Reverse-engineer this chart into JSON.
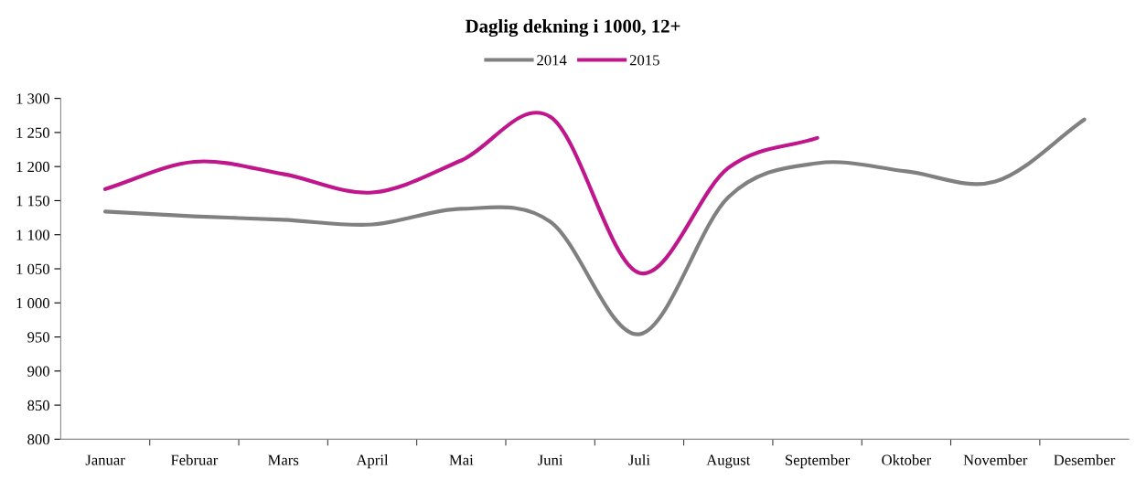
{
  "chart_data": {
    "type": "line",
    "title": "Daglig dekning i 1000, 12+",
    "categories": [
      "Januar",
      "Februar",
      "Mars",
      "April",
      "Mai",
      "Juni",
      "Juli",
      "August",
      "September",
      "Oktober",
      "November",
      "Desember"
    ],
    "series": [
      {
        "name": "2014",
        "color": "#808080",
        "values": [
          1134,
          1127,
          1122,
          1115,
          1138,
          1119,
          954,
          1155,
          1205,
          1193,
          1178,
          1269
        ]
      },
      {
        "name": "2015",
        "color": "#c0168c",
        "values": [
          1167,
          1207,
          1189,
          1162,
          1209,
          1273,
          1044,
          1198,
          1242,
          null,
          null,
          null
        ]
      }
    ],
    "ylim": [
      800,
      1300
    ],
    "yticks": [
      800,
      850,
      900,
      950,
      {
        "value": 1000,
        "label": "1 000"
      },
      {
        "value": 1050,
        "label": "1 050"
      },
      {
        "value": 1100,
        "label": "1 100"
      },
      {
        "value": 1150,
        "label": "1 150"
      },
      {
        "value": 1200,
        "label": "1 200"
      },
      {
        "value": 1250,
        "label": "1 250"
      },
      {
        "value": 1300,
        "label": "1 300"
      }
    ],
    "grid": false,
    "legend": "top",
    "marker": "none",
    "line_style": "solid"
  }
}
